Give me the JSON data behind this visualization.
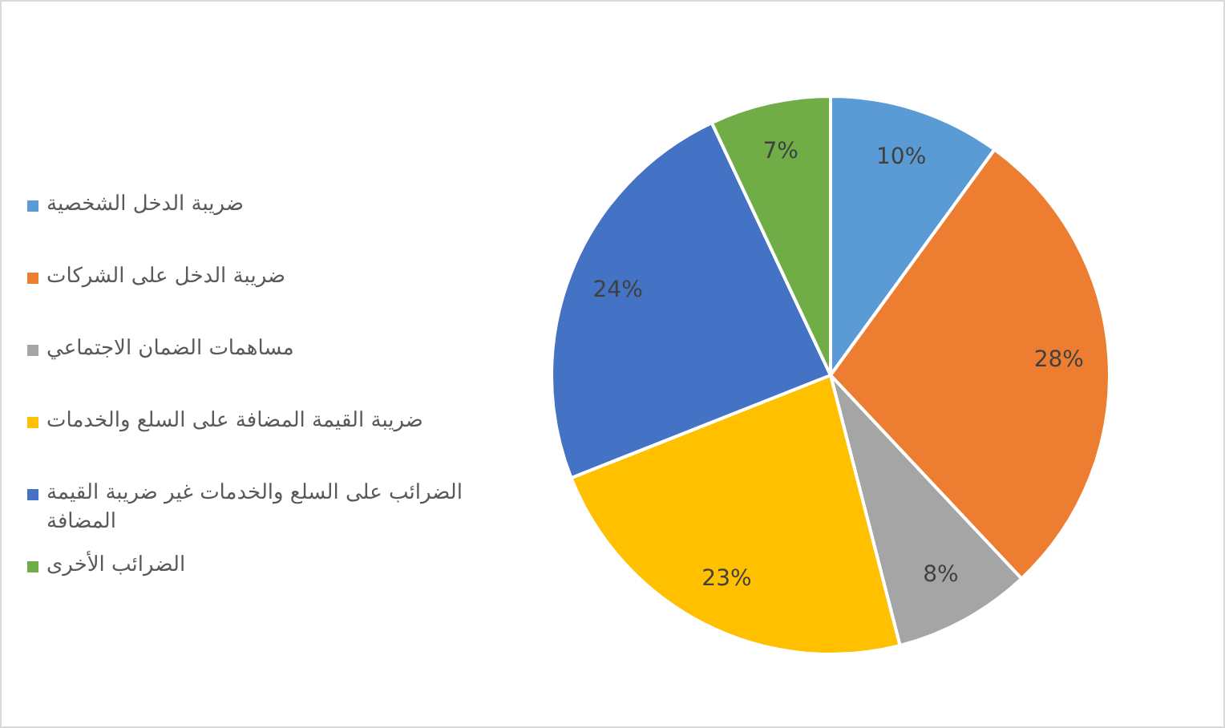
{
  "chart_data": {
    "type": "pie",
    "categories": [
      "ضريبة الدخل الشخصية",
      "ضريبة الدخل على الشركات",
      "مساهمات الضمان الاجتماعي",
      "ضريبة القيمة المضافة على السلع والخدمات",
      "الضرائب على السلع والخدمات غير ضريبة القيمة المضافة",
      "الضرائب الأخرى"
    ],
    "values": [
      10,
      28,
      8,
      23,
      24,
      7
    ],
    "colors": [
      "#5b9bd5",
      "#ed7d31",
      "#a5a5a5",
      "#ffc000",
      "#4472c4",
      "#70ad47"
    ],
    "value_labels": [
      "10%",
      "28%",
      "8%",
      "23%",
      "24%",
      "7%"
    ],
    "legend": "left"
  }
}
